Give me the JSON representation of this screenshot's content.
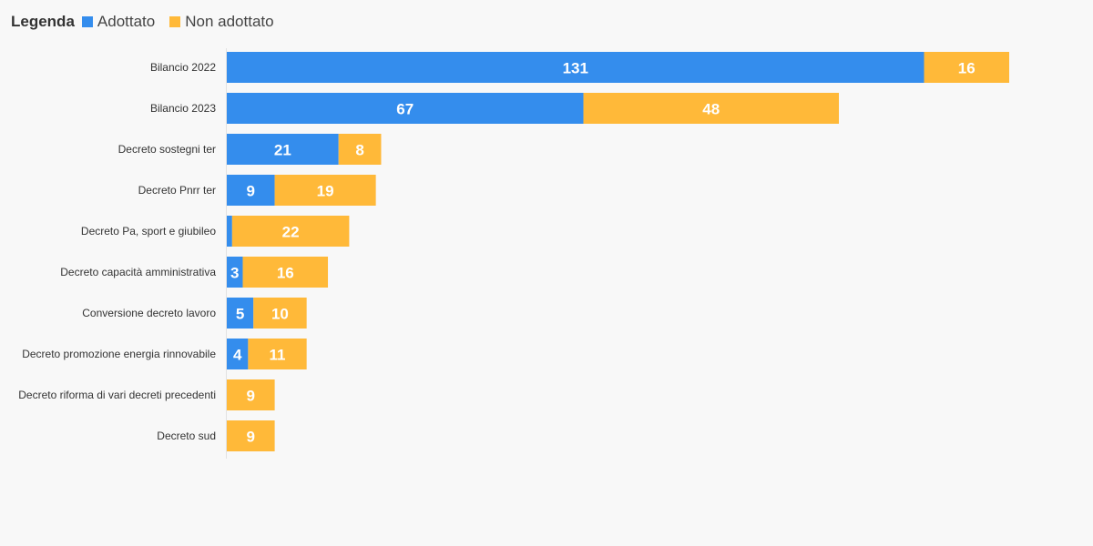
{
  "legend": {
    "title": "Legenda",
    "items": [
      {
        "label": "Adottato",
        "color": "#348ded"
      },
      {
        "label": "Non adottato",
        "color": "#ffb939"
      }
    ]
  },
  "chart_data": {
    "type": "bar",
    "orientation": "horizontal",
    "stacked": true,
    "title": "",
    "xlabel": "",
    "ylabel": "",
    "xlim": [
      0,
      147
    ],
    "grid": false,
    "legend_position": "top-left",
    "categories": [
      "Bilancio 2022",
      "Bilancio 2023",
      "Decreto sostegni ter",
      "Decreto Pnrr ter",
      "Decreto Pa, sport e giubileo",
      "Decreto capacità amministrativa",
      "Conversione decreto lavoro",
      "Decreto promozione energia rinnovabile",
      "Decreto riforma di vari decreti precedenti",
      "Decreto sud"
    ],
    "series": [
      {
        "name": "Adottato",
        "color": "#348ded",
        "values": [
          131,
          67,
          21,
          9,
          1,
          3,
          5,
          4,
          0,
          0
        ]
      },
      {
        "name": "Non adottato",
        "color": "#ffb939",
        "values": [
          16,
          48,
          8,
          19,
          22,
          16,
          10,
          11,
          9,
          9
        ]
      }
    ]
  }
}
